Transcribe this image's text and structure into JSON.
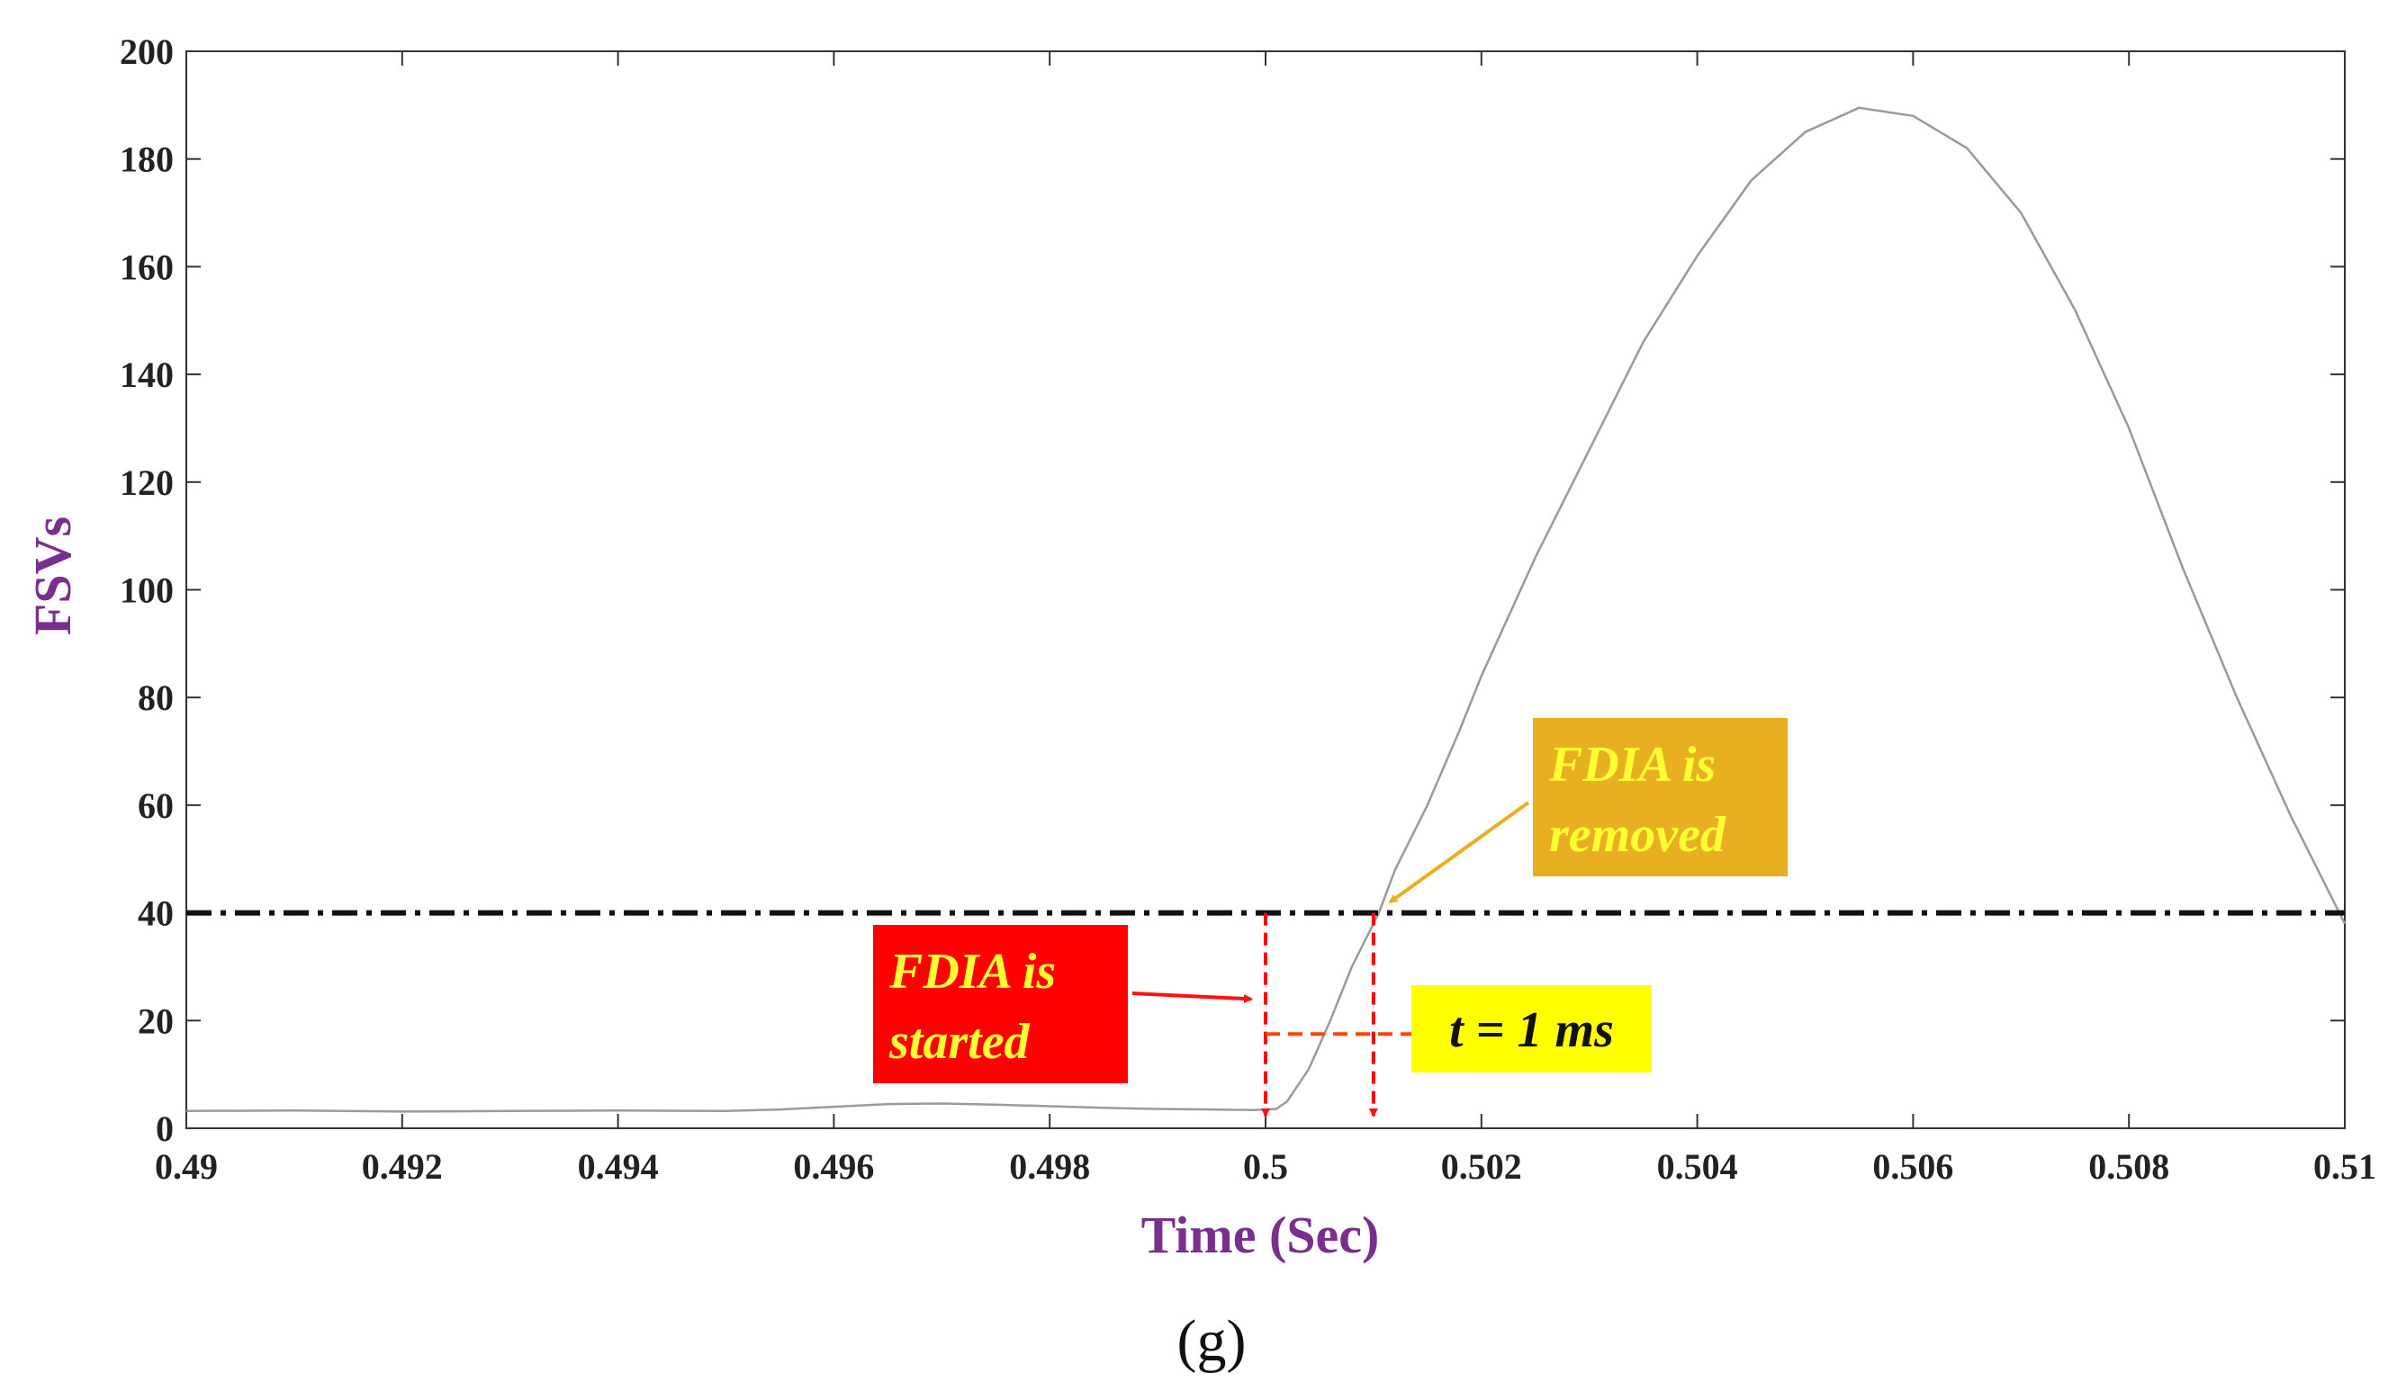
{
  "chart_data": {
    "type": "line",
    "title": "",
    "caption": "(g)",
    "xlabel": "Time (Sec)",
    "ylabel": "FSVs",
    "xlim": [
      0.49,
      0.51
    ],
    "ylim": [
      0,
      200
    ],
    "xticks": [
      0.49,
      0.492,
      0.494,
      0.496,
      0.498,
      0.5,
      0.502,
      0.504,
      0.506,
      0.508,
      0.51
    ],
    "xtick_labels": [
      "0.49",
      "0.492",
      "0.494",
      "0.496",
      "0.498",
      "0.5",
      "0.502",
      "0.504",
      "0.506",
      "0.508",
      "0.51"
    ],
    "yticks": [
      0,
      20,
      40,
      60,
      80,
      100,
      120,
      140,
      160,
      180,
      200
    ],
    "ytick_labels": [
      "0",
      "20",
      "40",
      "60",
      "80",
      "100",
      "120",
      "140",
      "160",
      "180",
      "200"
    ],
    "grid": false,
    "series": [
      {
        "name": "FSVs",
        "color": "#9a9a9a",
        "x": [
          0.49,
          0.491,
          0.492,
          0.493,
          0.494,
          0.495,
          0.4955,
          0.496,
          0.4965,
          0.497,
          0.4975,
          0.498,
          0.4985,
          0.499,
          0.4995,
          0.4999,
          0.5001,
          0.5002,
          0.5004,
          0.5006,
          0.5008,
          0.501,
          0.50105,
          0.5012,
          0.5015,
          0.5018,
          0.502,
          0.5025,
          0.503,
          0.5035,
          0.504,
          0.5045,
          0.505,
          0.5055,
          0.506,
          0.5065,
          0.507,
          0.5075,
          0.508,
          0.5085,
          0.509,
          0.5095,
          0.51
        ],
        "y": [
          3.2,
          3.3,
          3.1,
          3.2,
          3.3,
          3.2,
          3.5,
          4.0,
          4.5,
          4.6,
          4.4,
          4.1,
          3.8,
          3.6,
          3.5,
          3.4,
          3.6,
          5.0,
          11.0,
          20.0,
          30.0,
          38.0,
          40.0,
          48.0,
          60.0,
          74.0,
          84.0,
          106.0,
          126.0,
          146.0,
          162.0,
          176.0,
          185.0,
          189.5,
          188.0,
          182.0,
          170.0,
          152.0,
          130.0,
          104.0,
          80.0,
          58.0,
          38.0
        ]
      },
      {
        "name": "Threshold",
        "color": "#111111",
        "style": "dash-dot",
        "x": [
          0.49,
          0.51
        ],
        "y": [
          40,
          40
        ]
      }
    ],
    "annotations": [
      {
        "name": "fdia-started",
        "text_lines": [
          "FDIA is",
          "started"
        ],
        "box_color": "#ff0000",
        "text_color": "#ffff33",
        "arrow_color": "#ff1111",
        "arrow_tip": [
          0.4999,
          24
        ]
      },
      {
        "name": "fdia-removed",
        "text_lines": [
          "FDIA is",
          "removed"
        ],
        "box_color": "#e8b020",
        "text_color": "#ffff33",
        "arrow_color": "#e8b020",
        "arrow_tip": [
          0.50112,
          42
        ]
      },
      {
        "name": "time-delay",
        "text": "t = 1 ms",
        "box_color": "#ffff00",
        "text_color": "#111111",
        "bracket_color": "#ff4400",
        "marker_color": "#ff0000",
        "marker_times": [
          0.5,
          0.501
        ],
        "bracket_y": 17.5
      }
    ]
  }
}
